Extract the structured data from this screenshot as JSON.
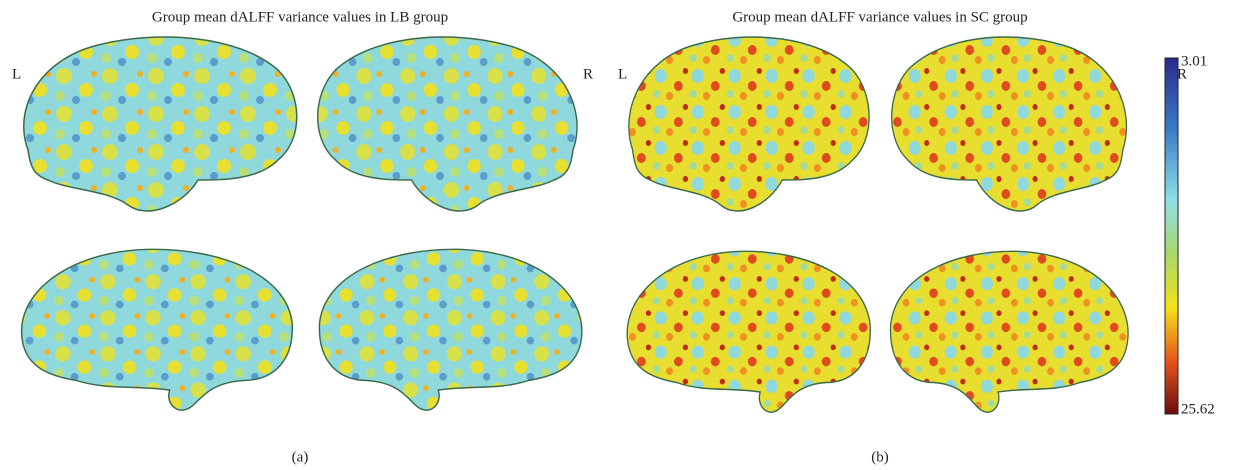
{
  "panels": [
    {
      "title": "Group mean dALFF variance values in LB group",
      "left_label": "L",
      "right_label": "R",
      "caption": "(a)"
    },
    {
      "title": "Group mean dALFF variance values in SC group",
      "left_label": "L",
      "right_label": "R",
      "caption": "(b)"
    }
  ],
  "colorbar": {
    "top_label": "3.01",
    "bottom_label": "25.62"
  }
}
